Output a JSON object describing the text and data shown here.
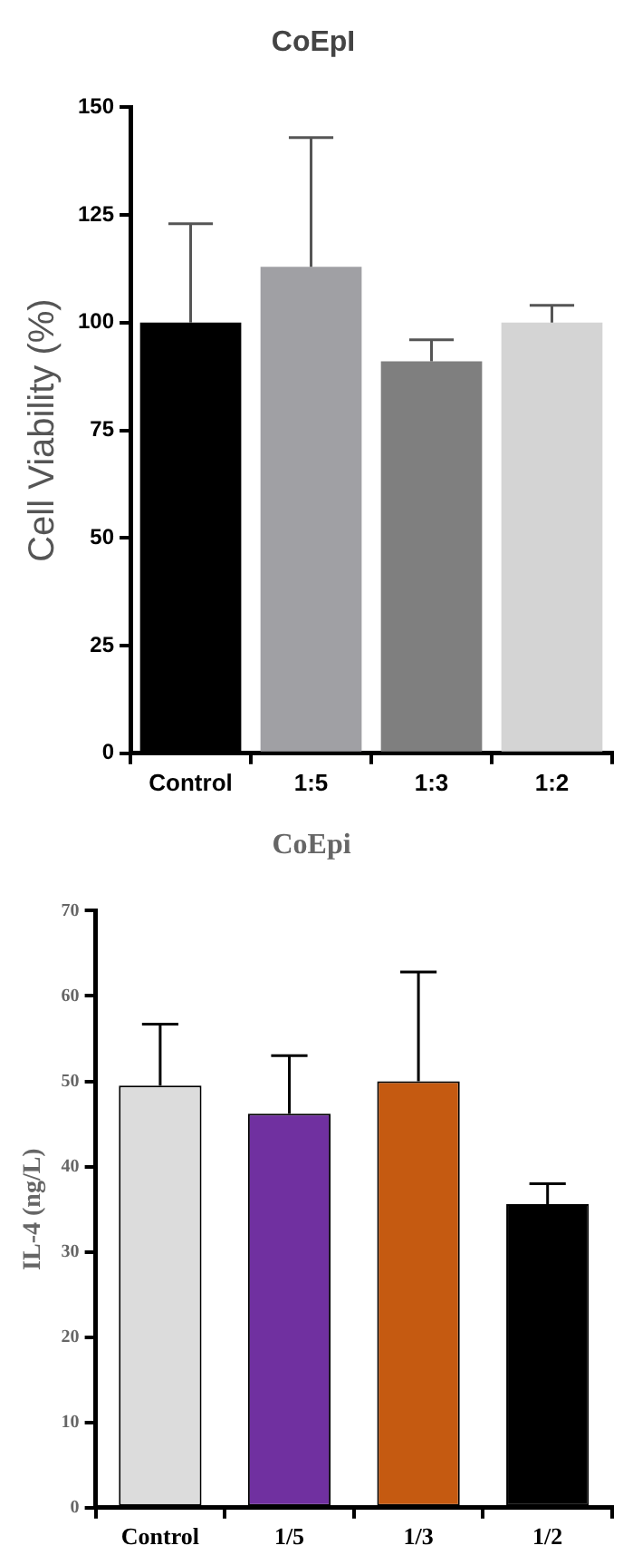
{
  "chart_data": [
    {
      "type": "bar",
      "title": "CoEpI",
      "ylabel": "Cell Viability (%)",
      "categories": [
        "Control",
        "1:5",
        "1:3",
        "1:2"
      ],
      "values": [
        100,
        113,
        91,
        100
      ],
      "colors": [
        "#000000",
        "#a0a0a4",
        "#7f7f7f",
        "#d4d4d4"
      ],
      "errors": [
        [
          100,
          123
        ],
        [
          113,
          143
        ],
        [
          91,
          96
        ],
        [
          100,
          104
        ]
      ],
      "ylim": [
        0,
        150
      ],
      "yticks": [
        0,
        25,
        50,
        75,
        100,
        125,
        150
      ],
      "grid": false,
      "legend": false
    },
    {
      "type": "bar",
      "title": "CoEpi",
      "ylabel": "IL-4 (ng/L)",
      "categories": [
        "Control",
        "1/5",
        "1/3",
        "1/2"
      ],
      "values": [
        49.5,
        46.2,
        50,
        35.6
      ],
      "colors": [
        "#dcdcdc",
        "#7030a0",
        "#c55a11",
        "#000000"
      ],
      "errors": [
        [
          49.5,
          56.7
        ],
        [
          46.2,
          53
        ],
        [
          50,
          62.8
        ],
        [
          35.6,
          38
        ]
      ],
      "ylim": [
        0,
        70
      ],
      "yticks": [
        0,
        10,
        20,
        30,
        40,
        50,
        60,
        70
      ],
      "grid": false,
      "legend": false
    }
  ]
}
